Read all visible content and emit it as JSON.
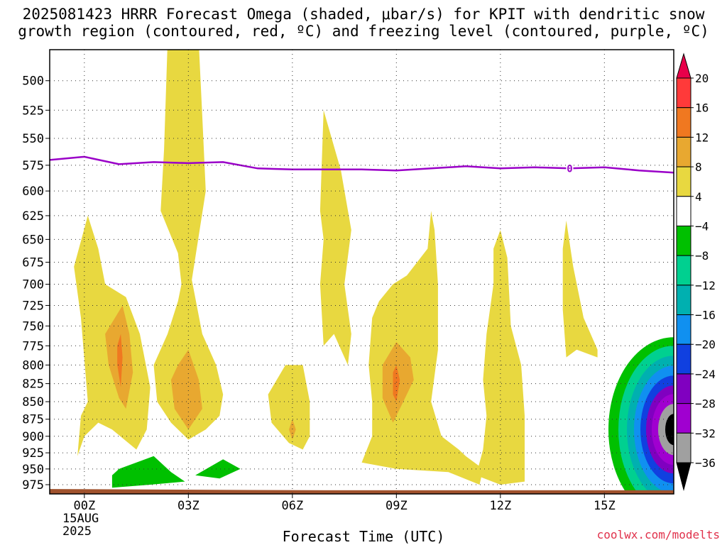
{
  "chart_data": {
    "type": "heatmap",
    "title_line1": "2025081423 HRRR Forecast Omega (shaded, μbar/s) for KPIT with dendritic snow",
    "title_line2": "growth region (contoured, red, ºC) and freezing level (contoured, purple, ºC)",
    "xlabel": "Forecast Time (UTC)",
    "x_ticks": [
      {
        "hour": 0,
        "label": "00Z"
      },
      {
        "hour": 3,
        "label": "03Z"
      },
      {
        "hour": 6,
        "label": "06Z"
      },
      {
        "hour": 9,
        "label": "09Z"
      },
      {
        "hour": 12,
        "label": "12Z"
      },
      {
        "hour": 15,
        "label": "15Z"
      }
    ],
    "x_range": [
      -1,
      17
    ],
    "date_label": [
      "15AUG",
      "2025"
    ],
    "y_ticks": [
      500,
      525,
      550,
      575,
      600,
      625,
      650,
      675,
      700,
      725,
      750,
      775,
      800,
      825,
      850,
      875,
      900,
      925,
      950,
      975
    ],
    "y_range": [
      475,
      990
    ],
    "y_scale": "log-pressure",
    "grid": true,
    "colorbar": {
      "levels": [
        20,
        16,
        12,
        8,
        4,
        -4,
        -8,
        -12,
        -16,
        -20,
        -24,
        -28,
        -32,
        -36
      ],
      "colors": [
        "#e8004a",
        "#ff3a3a",
        "#f07820",
        "#e8a830",
        "#e8d840",
        "#ffffff",
        "#00c000",
        "#00d090",
        "#00b0b0",
        "#1090f0",
        "#1040e0",
        "#8000c0",
        "#a000d0",
        "#a0a0a0",
        "#000000"
      ]
    },
    "freezing_level": {
      "label": "0",
      "label_hour": 14.0,
      "points": [
        [
          -1,
          570
        ],
        [
          0,
          567
        ],
        [
          1,
          574
        ],
        [
          2,
          572
        ],
        [
          3,
          573
        ],
        [
          4,
          572
        ],
        [
          5,
          578
        ],
        [
          6,
          579
        ],
        [
          7,
          579
        ],
        [
          8,
          579
        ],
        [
          9,
          580
        ],
        [
          10,
          578
        ],
        [
          11,
          576
        ],
        [
          12,
          578
        ],
        [
          13,
          577
        ],
        [
          14,
          578
        ],
        [
          15,
          577
        ],
        [
          16,
          580
        ],
        [
          17,
          582
        ]
      ]
    },
    "omega_regions": [
      {
        "value": 4,
        "points": [
          [
            -0.2,
            930
          ],
          [
            -0.1,
            870
          ],
          [
            0.1,
            850
          ],
          [
            -0.1,
            740
          ],
          [
            -0.3,
            680
          ],
          [
            0.1,
            625
          ],
          [
            0.4,
            660
          ],
          [
            0.6,
            700
          ],
          [
            1.2,
            715
          ],
          [
            1.6,
            760
          ],
          [
            1.9,
            830
          ],
          [
            1.8,
            890
          ],
          [
            1.5,
            920
          ],
          [
            0.8,
            890
          ],
          [
            0.4,
            880
          ],
          [
            0.0,
            900
          ]
        ]
      },
      {
        "value": 8,
        "points": [
          [
            0.6,
            760
          ],
          [
            1.1,
            725
          ],
          [
            1.3,
            760
          ],
          [
            1.4,
            810
          ],
          [
            1.2,
            860
          ],
          [
            1.0,
            845
          ],
          [
            0.7,
            800
          ]
        ]
      },
      {
        "value": 12,
        "points": [
          [
            0.95,
            775
          ],
          [
            1.05,
            760
          ],
          [
            1.1,
            790
          ],
          [
            1.05,
            830
          ],
          [
            0.95,
            800
          ]
        ]
      },
      {
        "value": 4,
        "points": [
          [
            2.4,
            470
          ],
          [
            3.3,
            470
          ],
          [
            3.4,
            530
          ],
          [
            3.5,
            600
          ],
          [
            3.1,
            695
          ],
          [
            3.4,
            760
          ],
          [
            3.8,
            800
          ],
          [
            4.0,
            840
          ],
          [
            3.9,
            870
          ],
          [
            3.5,
            890
          ],
          [
            3.0,
            905
          ],
          [
            2.5,
            880
          ],
          [
            2.1,
            850
          ],
          [
            2.0,
            800
          ],
          [
            2.4,
            760
          ],
          [
            2.7,
            720
          ],
          [
            2.8,
            700
          ],
          [
            2.7,
            665
          ],
          [
            2.2,
            620
          ],
          [
            2.3,
            560
          ]
        ]
      },
      {
        "value": 8,
        "points": [
          [
            2.7,
            800
          ],
          [
            3.0,
            780
          ],
          [
            3.3,
            820
          ],
          [
            3.4,
            860
          ],
          [
            3.0,
            890
          ],
          [
            2.6,
            860
          ],
          [
            2.5,
            820
          ]
        ]
      },
      {
        "value": 4,
        "points": [
          [
            5.4,
            880
          ],
          [
            5.3,
            840
          ],
          [
            5.8,
            800
          ],
          [
            6.3,
            800
          ],
          [
            6.5,
            850
          ],
          [
            6.5,
            900
          ],
          [
            6.3,
            920
          ],
          [
            5.9,
            910
          ]
        ]
      },
      {
        "value": 8,
        "points": [
          [
            5.9,
            890
          ],
          [
            6.0,
            875
          ],
          [
            6.1,
            890
          ],
          [
            6.0,
            905
          ]
        ]
      },
      {
        "value": 4,
        "points": [
          [
            6.8,
            620
          ],
          [
            6.9,
            525
          ],
          [
            7.4,
            580
          ],
          [
            7.7,
            640
          ],
          [
            7.5,
            700
          ],
          [
            7.7,
            760
          ],
          [
            7.6,
            800
          ],
          [
            7.2,
            760
          ],
          [
            6.9,
            775
          ],
          [
            6.8,
            700
          ],
          [
            6.9,
            650
          ]
        ]
      },
      {
        "value": 4,
        "points": [
          [
            8.0,
            940
          ],
          [
            8.3,
            900
          ],
          [
            8.3,
            850
          ],
          [
            8.2,
            800
          ],
          [
            8.3,
            740
          ],
          [
            8.5,
            720
          ],
          [
            8.9,
            700
          ],
          [
            9.3,
            690
          ],
          [
            9.9,
            660
          ],
          [
            10.0,
            620
          ],
          [
            10.1,
            640
          ],
          [
            10.2,
            700
          ],
          [
            10.2,
            780
          ],
          [
            10.0,
            850
          ],
          [
            10.3,
            900
          ],
          [
            10.8,
            920
          ],
          [
            11.0,
            930
          ],
          [
            11.5,
            950
          ],
          [
            11.4,
            975
          ],
          [
            10.5,
            955
          ],
          [
            9.0,
            950
          ]
        ]
      },
      {
        "value": 8,
        "points": [
          [
            8.6,
            800
          ],
          [
            9.0,
            770
          ],
          [
            9.4,
            790
          ],
          [
            9.5,
            820
          ],
          [
            9.2,
            850
          ],
          [
            8.9,
            880
          ],
          [
            8.6,
            845
          ]
        ]
      },
      {
        "value": 12,
        "points": [
          [
            8.9,
            810
          ],
          [
            9.0,
            800
          ],
          [
            9.1,
            820
          ],
          [
            9.0,
            850
          ],
          [
            8.9,
            840
          ]
        ]
      },
      {
        "value": 4,
        "points": [
          [
            11.8,
            660
          ],
          [
            12.0,
            640
          ],
          [
            12.2,
            670
          ],
          [
            12.3,
            750
          ],
          [
            12.6,
            800
          ],
          [
            12.7,
            870
          ],
          [
            12.7,
            970
          ],
          [
            12.0,
            975
          ],
          [
            11.3,
            960
          ],
          [
            11.5,
            920
          ],
          [
            11.6,
            870
          ],
          [
            11.5,
            820
          ],
          [
            11.6,
            760
          ],
          [
            11.8,
            700
          ]
        ]
      },
      {
        "value": 4,
        "points": [
          [
            13.8,
            660
          ],
          [
            13.9,
            630
          ],
          [
            14.1,
            680
          ],
          [
            14.4,
            740
          ],
          [
            14.8,
            780
          ],
          [
            14.8,
            790
          ],
          [
            14.2,
            780
          ],
          [
            13.9,
            790
          ],
          [
            13.8,
            730
          ]
        ]
      },
      {
        "value": -4,
        "points": [
          [
            1.0,
            950
          ],
          [
            2.0,
            930
          ],
          [
            2.5,
            955
          ],
          [
            2.9,
            970
          ],
          [
            1.9,
            975
          ],
          [
            0.8,
            980
          ],
          [
            0.8,
            960
          ]
        ]
      },
      {
        "value": -4,
        "points": [
          [
            3.2,
            960
          ],
          [
            4.0,
            935
          ],
          [
            4.5,
            950
          ],
          [
            3.9,
            965
          ]
        ]
      }
    ],
    "downward_bulge": {
      "center_hour": 17,
      "center_p": 890,
      "levels": [
        -4,
        -8,
        -12,
        -16,
        -20,
        -24,
        -28,
        -32,
        -36
      ]
    },
    "terrain": {
      "color": "#a0522d"
    },
    "credit": "coolwx.com/modelts"
  }
}
